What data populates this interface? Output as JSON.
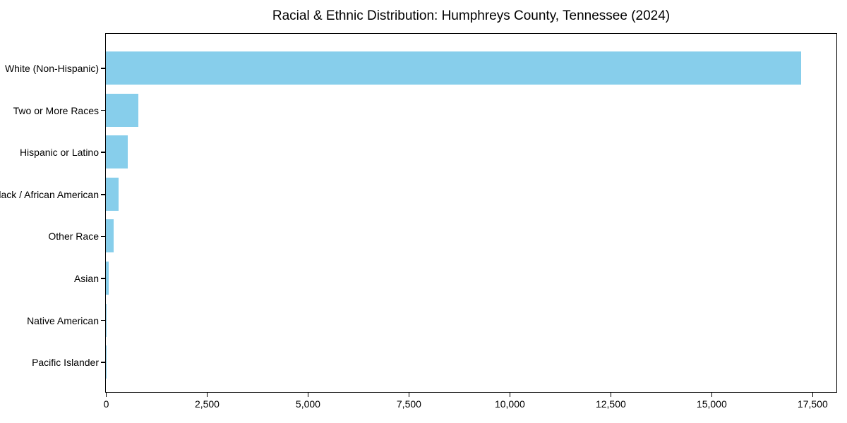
{
  "title": "Racial & Ethnic Distribution: Humphreys County, Tennessee (2024)",
  "chart_data": {
    "type": "bar",
    "orientation": "horizontal",
    "title": "Racial & Ethnic Distribution: Humphreys County, Tennessee (2024)",
    "categories": [
      "White (Non-Hispanic)",
      "Two or More Races",
      "Hispanic or Latino",
      "Black / African American",
      "Other Race",
      "Asian",
      "Native American",
      "Pacific Islander"
    ],
    "values": [
      17220,
      800,
      540,
      320,
      190,
      65,
      10,
      5
    ],
    "xlabel": "",
    "ylabel": "",
    "xlim": [
      0,
      18080
    ],
    "x_ticks": [
      0,
      2500,
      5000,
      7500,
      10000,
      12500,
      15000,
      17500
    ],
    "x_tick_labels": [
      "0",
      "2,500",
      "5,000",
      "7,500",
      "10,000",
      "12,500",
      "15,000",
      "17,500"
    ],
    "grid": false,
    "legend": null,
    "bar_color": "#87CEEB",
    "axis_color": "#000000",
    "background_color": "#FFFFFF",
    "text_color": "#000000"
  }
}
